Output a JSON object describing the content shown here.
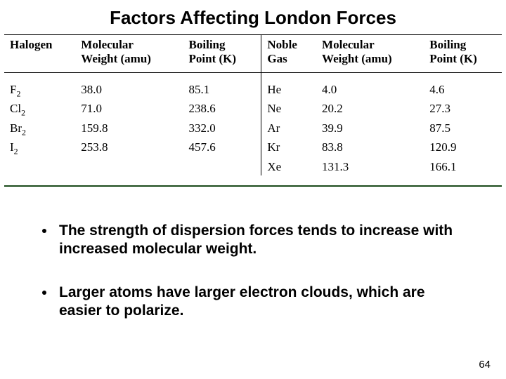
{
  "title": "Factors Affecting London Forces",
  "table": {
    "type": "table",
    "background_color": "#ffffff",
    "text_color": "#000000",
    "rule_color_top": "#000000",
    "rule_color_bottom": "#1a4a1a",
    "font_family": "Times New Roman",
    "header_fontsize": 17,
    "cell_fontsize": 17,
    "columns_left": [
      "Halogen",
      "Molecular\nWeight (amu)",
      "Boiling\nPoint (K)"
    ],
    "columns_right": [
      "Noble\nGas",
      "Molecular\nWeight (amu)",
      "Boiling\nPoint (K)"
    ],
    "left": {
      "halogen": [
        "F2",
        "Cl2",
        "Br2",
        "I2"
      ],
      "mw": [
        "38.0",
        "71.0",
        "159.8",
        "253.8"
      ],
      "bp": [
        "85.1",
        "238.6",
        "332.0",
        "457.6"
      ]
    },
    "right": {
      "gas": [
        "He",
        "Ne",
        "Ar",
        "Kr",
        "Xe"
      ],
      "mw": [
        "4.0",
        "20.2",
        "39.9",
        "83.8",
        "131.3"
      ],
      "bp": [
        "4.6",
        "27.3",
        "87.5",
        "120.9",
        "166.1"
      ]
    }
  },
  "bullets": [
    "The strength of dispersion forces tends to increase with increased molecular weight.",
    "Larger atoms have larger electron clouds, which are easier to polarize."
  ],
  "page_number": "64",
  "h": {
    "halogen": "Halogen",
    "mw": "Molecular",
    "mw2": "Weight (amu)",
    "bp": "Boiling",
    "bp2": "Point (K)",
    "noble": "Noble",
    "noble2": "Gas"
  }
}
